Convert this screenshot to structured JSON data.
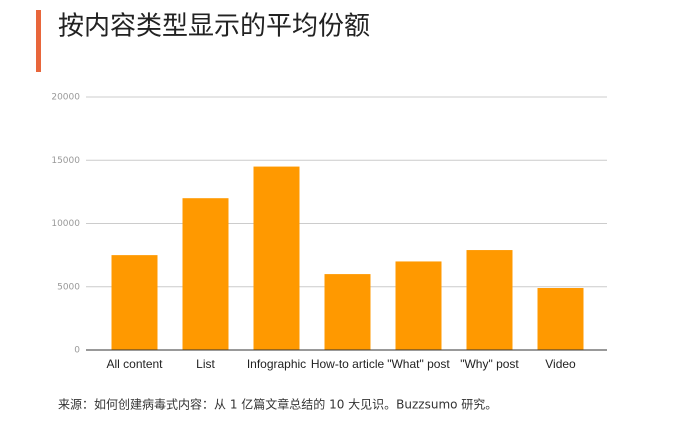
{
  "chart_data": {
    "type": "bar",
    "title": "按内容类型显示的平均份额",
    "categories": [
      "All content",
      "List",
      "Infographic",
      "How-to article",
      "\"What\" post",
      "\"Why\" post",
      "Video"
    ],
    "values": [
      7500,
      12000,
      14500,
      6000,
      7000,
      7900,
      4900
    ],
    "color": "#ff9900",
    "ylim": [
      0,
      20000
    ],
    "yticks": [
      0,
      5000,
      10000,
      15000,
      20000
    ],
    "grid": true,
    "source": "来源：如何创建病毒式内容：从 1 亿篇文章总结的 10 大见识。Buzzsumo 研究。"
  }
}
